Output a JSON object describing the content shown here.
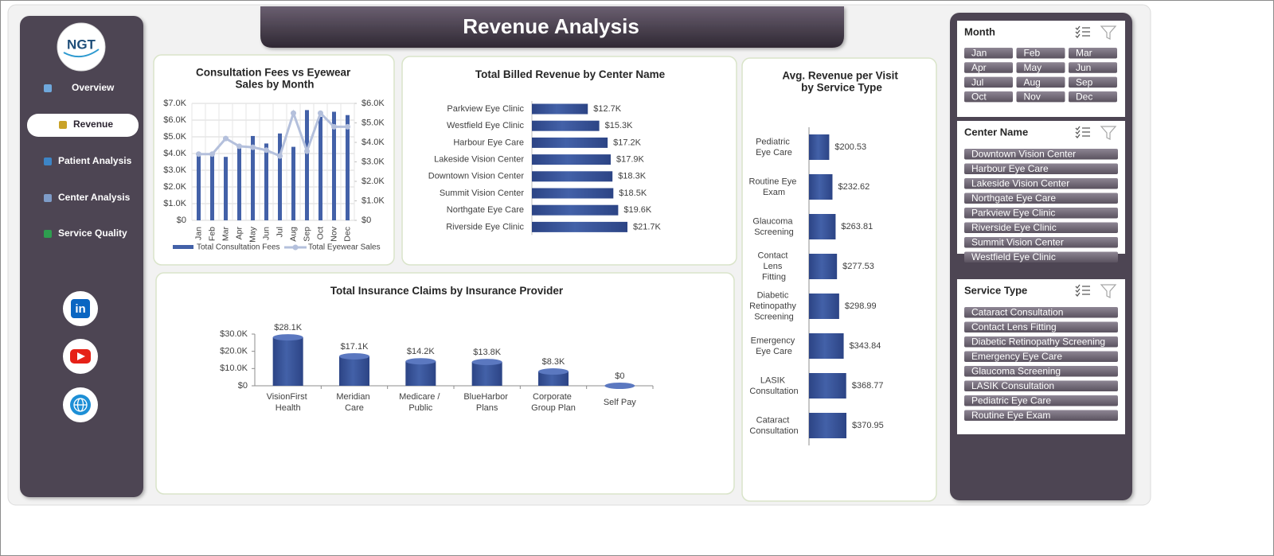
{
  "header": {
    "title": "Revenue Analysis"
  },
  "logo": {
    "text": "NGT"
  },
  "nav": [
    "Overview",
    "Revenue",
    "Patient Analysis",
    "Center Analysis",
    "Service Quality"
  ],
  "active_nav": 1,
  "chart_data": [
    {
      "type": "combo",
      "title": "Consultation Fees vs Eyewear Sales by Month",
      "categories": [
        "Jan",
        "Feb",
        "Mar",
        "Apr",
        "May",
        "Jun",
        "Jul",
        "Aug",
        "Sep",
        "Oct",
        "Nov",
        "Dec"
      ],
      "series": [
        {
          "name": "Total Consultation Fees",
          "color": "#4361a8",
          "kind": "bar",
          "values": [
            3900,
            3900,
            3800,
            4500,
            5050,
            4600,
            5200,
            4400,
            6600,
            6200,
            6500,
            6300
          ]
        },
        {
          "name": "Total Eyewear Sales",
          "color": "#b4c0dc",
          "kind": "line",
          "axis": "y2",
          "values": [
            3400,
            3400,
            4200,
            3800,
            3750,
            3600,
            3300,
            5500,
            3550,
            5500,
            4800,
            4800
          ]
        }
      ],
      "ylim": [
        0,
        7000
      ],
      "yticks": [
        {
          "value": 0,
          "label": "$0"
        },
        {
          "value": 1000,
          "label": "$1.0K"
        },
        {
          "value": 2000,
          "label": "$2.0K"
        },
        {
          "value": 3000,
          "label": "$3.0K"
        },
        {
          "value": 4000,
          "label": "$4.0K"
        },
        {
          "value": 5000,
          "label": "$5.0K"
        },
        {
          "value": 6000,
          "label": "$6.0K"
        },
        {
          "value": 7000,
          "label": "$7.0K"
        }
      ],
      "y2lim": [
        0,
        6000
      ],
      "y2ticks": [
        {
          "value": 0,
          "label": "$0"
        },
        {
          "value": 1000,
          "label": "$1.0K"
        },
        {
          "value": 2000,
          "label": "$2.0K"
        },
        {
          "value": 3000,
          "label": "$3.0K"
        },
        {
          "value": 4000,
          "label": "$4.0K"
        },
        {
          "value": 5000,
          "label": "$5.0K"
        },
        {
          "value": 6000,
          "label": "$6.0K"
        }
      ],
      "grid": true,
      "legend": "bottom"
    },
    {
      "type": "bar",
      "orientation": "horizontal",
      "title": "Total Billed Revenue by Center Name",
      "color": "#4361a8",
      "categories": [
        "Parkview Eye Clinic",
        "Westfield Eye Clinic",
        "Harbour Eye Care",
        "Lakeside Vision Center",
        "Downtown Vision Center",
        "Summit Vision Center",
        "Northgate Eye Care",
        "Riverside Eye Clinic"
      ],
      "values": [
        12700,
        15300,
        17200,
        17900,
        18300,
        18500,
        19600,
        21700
      ],
      "value_labels": [
        "$12.7K",
        "$15.3K",
        "$17.2K",
        "$17.9K",
        "$18.3K",
        "$18.5K",
        "$19.6K",
        "$21.7K"
      ]
    },
    {
      "type": "bar",
      "orientation": "vertical",
      "title": "Total Insurance Claims by Insurance Provider",
      "color": "#4361a8",
      "categories": [
        "VisionFirst Health",
        "Meridian Care",
        "Medicare / Public",
        "BlueHarbor Plans",
        "Corporate Group Plan",
        "Self Pay"
      ],
      "values": [
        28100,
        17100,
        14200,
        13800,
        8300,
        0
      ],
      "value_labels": [
        "$28.1K",
        "$17.1K",
        "$14.2K",
        "$13.8K",
        "$8.3K",
        "$0"
      ],
      "ylim": [
        0,
        30000
      ],
      "yticks": [
        {
          "value": 0,
          "label": "$0"
        },
        {
          "value": 10000,
          "label": "$10.0K"
        },
        {
          "value": 20000,
          "label": "$20.0K"
        },
        {
          "value": 30000,
          "label": "$30.0K"
        }
      ]
    },
    {
      "type": "bar",
      "orientation": "horizontal",
      "title": "Avg. Revenue per Visit by Service Type",
      "color": "#4361a8",
      "categories": [
        "Pediatric Eye Care",
        "Routine Eye Exam",
        "Glaucoma Screening",
        "Contact Lens Fitting",
        "Diabetic Retinopathy Screening",
        "Emergency Eye Care",
        "LASIK Consultation",
        "Cataract Consultation"
      ],
      "values": [
        200.53,
        232.62,
        263.81,
        277.53,
        298.99,
        343.84,
        368.77,
        370.95
      ],
      "value_labels": [
        "$200.53",
        "$232.62",
        "$263.81",
        "$277.53",
        "$298.99",
        "$343.84",
        "$368.77",
        "$370.95"
      ]
    }
  ],
  "slicers": [
    {
      "title": "Month",
      "items": [
        "Jan",
        "Feb",
        "Mar",
        "Apr",
        "May",
        "Jun",
        "Jul",
        "Aug",
        "Sep",
        "Oct",
        "Nov",
        "Dec"
      ]
    },
    {
      "title": "Center Name",
      "items": [
        "Downtown Vision Center",
        "Harbour Eye Care",
        "Lakeside Vision Center",
        "Northgate Eye Care",
        "Parkview Eye Clinic",
        "Riverside Eye Clinic",
        "Summit Vision Center",
        "Westfield Eye Clinic"
      ]
    },
    {
      "title": "Service Type",
      "items": [
        "Cataract Consultation",
        "Contact Lens Fitting",
        "Diabetic Retinopathy Screening",
        "Emergency Eye Care",
        "Glaucoma Screening",
        "LASIK Consultation",
        "Pediatric Eye Care",
        "Routine Eye Exam"
      ]
    }
  ]
}
